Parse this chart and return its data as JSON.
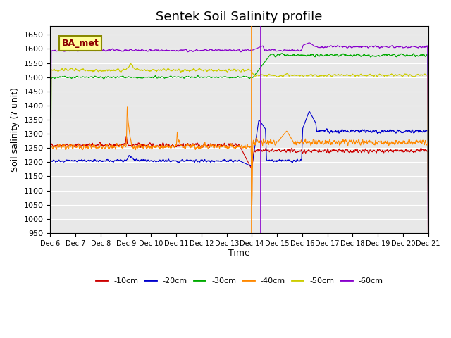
{
  "title": "Sentek Soil Salinity profile",
  "xlabel": "Time",
  "ylabel": "Soil salinity (? unit)",
  "legend_label": "BA_met",
  "ylim": [
    950,
    1680
  ],
  "yticks": [
    950,
    1000,
    1050,
    1100,
    1150,
    1200,
    1250,
    1300,
    1350,
    1400,
    1450,
    1500,
    1550,
    1600,
    1650
  ],
  "xtick_positions": [
    0,
    1,
    2,
    3,
    4,
    5,
    6,
    7,
    8,
    9,
    10,
    11,
    12,
    13,
    14,
    15
  ],
  "xticklabels": [
    "Dec 6",
    "Dec 7",
    "Dec 8",
    "Dec 9",
    "Dec 10",
    "Dec 11",
    "Dec 12",
    "Dec 13",
    "Dec 14",
    "Dec 15",
    "Dec 16",
    "Dec 17",
    "Dec 18",
    "Dec 19",
    "Dec 20",
    "Dec 21"
  ],
  "colors": {
    "-10cm": "#cc0000",
    "-20cm": "#0000cc",
    "-30cm": "#00aa00",
    "-40cm": "#ff8800",
    "-50cm": "#cccc00",
    "-60cm": "#8800cc"
  },
  "background_color": "#e8e8e8",
  "title_fontsize": 13
}
